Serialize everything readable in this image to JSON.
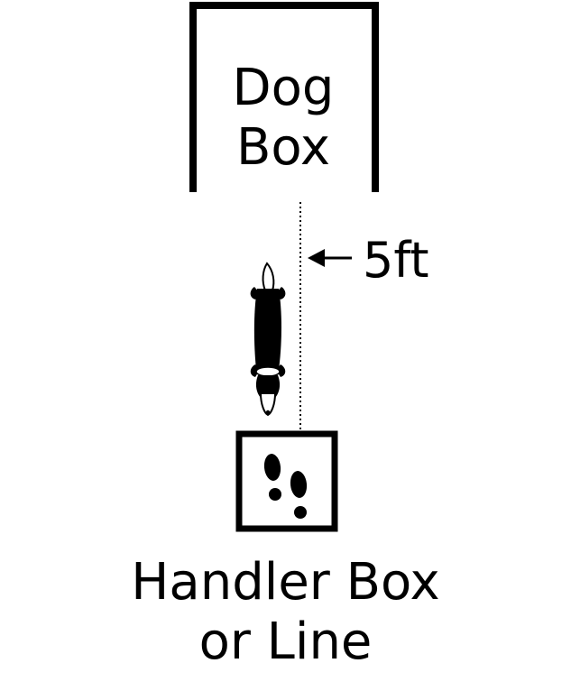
{
  "dog_box": {
    "line1": "Dog",
    "line2": "Box"
  },
  "distance": {
    "label": "5ft"
  },
  "handler_box": {
    "line1": "Handler Box",
    "line2": "or Line"
  },
  "icons": {
    "dog": "dog-top-view-icon",
    "footprints": "footprints-icon",
    "arrow": "arrow-left-icon"
  },
  "colors": {
    "ink": "#000000",
    "background": "#ffffff"
  }
}
